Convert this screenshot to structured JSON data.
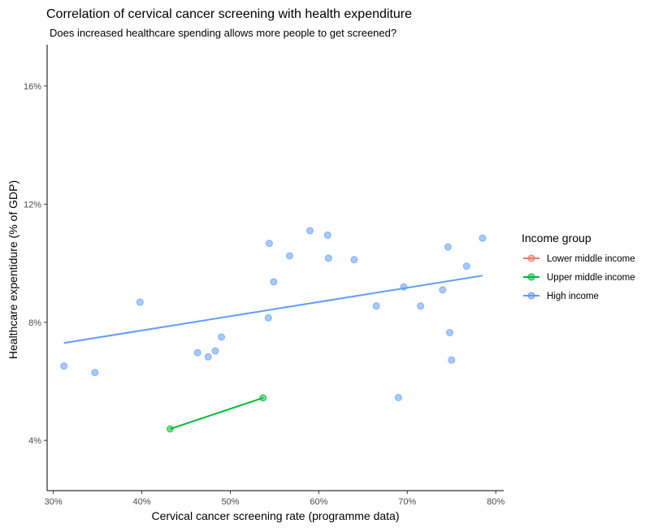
{
  "chart_data": {
    "type": "scatter",
    "title": "Correlation of cervical cancer screening with health expenditure",
    "subtitle": "Does increased healthcare spending allows more people to get screened?",
    "xlabel": "Cervical cancer screening rate (programme data)",
    "ylabel": "Healthcare expentidure (% of GDP)",
    "xlim": [
      29.3,
      80.9
    ],
    "ylim": [
      2.3,
      17.4
    ],
    "x_ticks": [
      30,
      40,
      50,
      60,
      70,
      80
    ],
    "x_tick_labels": [
      "30%",
      "40%",
      "50%",
      "60%",
      "70%",
      "80%"
    ],
    "y_ticks": [
      4,
      8,
      12,
      16
    ],
    "y_tick_labels": [
      "4%",
      "8%",
      "12%",
      "16%"
    ],
    "grid": false,
    "legend": {
      "title": "Income group",
      "position": "right",
      "entries": [
        {
          "label": "Lower middle income",
          "color": "#f8766d"
        },
        {
          "label": "Upper middle income",
          "color": "#00ba38"
        },
        {
          "label": "High income",
          "color": "#619cff"
        }
      ]
    },
    "series": [
      {
        "name": "Upper middle income",
        "color": "#00ba38",
        "points": [
          [
            43.2,
            4.39
          ],
          [
            53.7,
            5.44
          ]
        ],
        "trend": [
          [
            43.2,
            4.39
          ],
          [
            53.7,
            5.44
          ]
        ]
      },
      {
        "name": "High income",
        "color": "#619cff",
        "points": [
          [
            31.2,
            6.52
          ],
          [
            34.7,
            6.3
          ],
          [
            39.8,
            8.68
          ],
          [
            46.3,
            6.97
          ],
          [
            47.5,
            6.83
          ],
          [
            48.3,
            7.03
          ],
          [
            49.0,
            7.5
          ],
          [
            54.3,
            8.15
          ],
          [
            54.4,
            10.67
          ],
          [
            54.9,
            9.37
          ],
          [
            56.7,
            10.25
          ],
          [
            59.0,
            11.1
          ],
          [
            61.0,
            10.95
          ],
          [
            61.1,
            10.17
          ],
          [
            64.0,
            10.12
          ],
          [
            66.5,
            8.55
          ],
          [
            69.0,
            5.45
          ],
          [
            69.6,
            9.2
          ],
          [
            71.5,
            8.55
          ],
          [
            74.0,
            9.1
          ],
          [
            74.6,
            10.55
          ],
          [
            74.8,
            7.65
          ],
          [
            75.0,
            6.72
          ],
          [
            76.7,
            9.9
          ],
          [
            78.5,
            10.85
          ]
        ],
        "trend": [
          [
            31.2,
            7.3
          ],
          [
            78.5,
            9.58
          ]
        ]
      }
    ]
  }
}
